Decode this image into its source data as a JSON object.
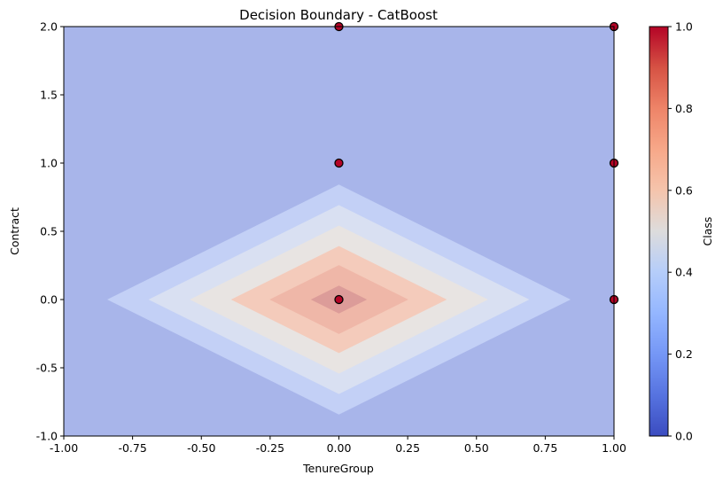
{
  "chart_data": {
    "type": "contour",
    "title": "Decision Boundary - CatBoost",
    "xlabel": "TenureGroup",
    "ylabel": "Contract",
    "xlim": [
      -1.0,
      1.0
    ],
    "ylim": [
      -1.0,
      2.0
    ],
    "xticks": [
      "-1.00",
      "-0.75",
      "-0.50",
      "-0.25",
      "0.00",
      "0.25",
      "0.50",
      "0.75",
      "1.00"
    ],
    "yticks": [
      "-1.0",
      "-0.5",
      "0.0",
      "0.5",
      "1.0",
      "1.5",
      "2.0"
    ],
    "grid": false,
    "colormap": "coolwarm",
    "colorbar": {
      "label": "Class",
      "range": [
        0.0,
        1.0
      ],
      "ticks": [
        "0.0",
        "0.2",
        "0.4",
        "0.6",
        "0.8",
        "1.0"
      ]
    },
    "contour_levels": [
      {
        "min": 0.0,
        "max": 0.15,
        "color": "#a8b5ea"
      },
      {
        "min": 0.15,
        "max": 0.3,
        "color": "#c3d0f6"
      },
      {
        "min": 0.3,
        "max": 0.45,
        "color": "#d9e0f2"
      },
      {
        "min": 0.45,
        "max": 0.6,
        "color": "#e8e4e2"
      },
      {
        "min": 0.6,
        "max": 0.75,
        "color": "#f4cbbb"
      },
      {
        "min": 0.75,
        "max": 0.9,
        "color": "#efb7a8"
      },
      {
        "min": 0.9,
        "max": 1.0,
        "color": "#dc9c99"
      }
    ],
    "region_center": [
      0.0,
      0.0
    ],
    "region_half_widths_x": [
      0.84,
      0.69,
      0.54,
      0.39,
      0.25,
      0.1
    ],
    "points": [
      {
        "x": 0.0,
        "y": 2.0,
        "class": 1
      },
      {
        "x": 1.0,
        "y": 2.0,
        "class": 1
      },
      {
        "x": 0.0,
        "y": 1.0,
        "class": 1
      },
      {
        "x": 1.0,
        "y": 1.0,
        "class": 1
      },
      {
        "x": 0.0,
        "y": 0.0,
        "class": 1
      },
      {
        "x": 1.0,
        "y": 0.0,
        "class": 1
      }
    ],
    "point_color": "#b40426"
  }
}
